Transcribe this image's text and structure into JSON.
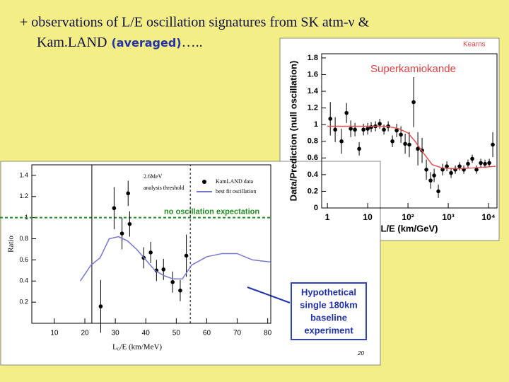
{
  "slide": {
    "title_line1": "+ observations of L/E oscillation signatures from SK atm-ν &",
    "title_line2": "Kam.LAND",
    "title_line2_note": "(averaged)",
    "title_line2_end": "…..",
    "callout": [
      "Hypothetical",
      "single 180km",
      "baseline",
      "experiment"
    ],
    "page_number": "20"
  },
  "chart_data": [
    {
      "type": "scatter",
      "title": "Superkamiokande",
      "credit": "Kearns",
      "xlabel": "L/E (km/GeV)",
      "ylabel": "Data/Prediction (null oscillation)",
      "log_x": true,
      "xlim": [
        0.72,
        16200
      ],
      "xticks": [
        1,
        10,
        {
          "value": 100,
          "label": "10²"
        },
        {
          "value": 1000,
          "label": "10³"
        },
        {
          "value": 10000,
          "label": "10⁴"
        }
      ],
      "ylim": [
        0,
        1.85
      ],
      "yticks": [
        0,
        0.2,
        0.4,
        0.6,
        0.8,
        1,
        1.2,
        1.4,
        1.6,
        1.8
      ],
      "series": [
        {
          "kind": "markers",
          "color": "#000000",
          "x": [
            1.18,
            1.56,
            2.24,
            2.98,
            3.79,
            4.83,
            6.15,
            7.85,
            10,
            12.2,
            15.6,
            19.9,
            25.3,
            32.3,
            41.1,
            52.4,
            66.8,
            85.1,
            108,
            138,
            176,
            224,
            286,
            364,
            446,
            568,
            724,
            922,
            1175,
            1497,
            1907,
            2430,
            3092,
            3944,
            5024,
            6412,
            8166,
            10420,
            12740
          ],
          "values": [
            1.07,
            0.94,
            0.8,
            1.14,
            0.95,
            0.94,
            0.71,
            0.94,
            0.95,
            0.97,
            0.98,
            1.01,
            0.94,
            0.98,
            0.8,
            0.93,
            0.88,
            0.77,
            0.76,
            1.27,
            0.71,
            0.69,
            0.46,
            0.33,
            0.39,
            0.2,
            0.46,
            0.5,
            0.42,
            0.46,
            0.5,
            0.46,
            0.53,
            0.59,
            0.46,
            0.54,
            0.53,
            0.54,
            0.76
          ],
          "errors": [
            0.2,
            0.15,
            0.15,
            0.12,
            0.1,
            0.08,
            0.08,
            0.07,
            0.07,
            0.06,
            0.06,
            0.06,
            0.06,
            0.06,
            0.07,
            0.08,
            0.1,
            0.12,
            0.15,
            0.3,
            0.2,
            0.15,
            0.12,
            0.1,
            0.08,
            0.08,
            0.07,
            0.06,
            0.06,
            0.05,
            0.05,
            0.05,
            0.05,
            0.05,
            0.05,
            0.05,
            0.05,
            0.05,
            0.15
          ]
        },
        {
          "kind": "line",
          "color": "#e05050",
          "x": [
            1,
            10,
            30,
            60,
            100,
            150,
            250,
            400,
            700,
            1500,
            4000,
            15000
          ],
          "values": [
            0.98,
            0.98,
            0.98,
            0.95,
            0.9,
            0.8,
            0.65,
            0.52,
            0.48,
            0.47,
            0.48,
            0.5
          ]
        }
      ]
    },
    {
      "type": "scatter",
      "xlabel": "L₀/E (km/MeV)",
      "ylabel": "Ratio",
      "log_x": false,
      "xlim": [
        2.6,
        81
      ],
      "xticks": [
        10,
        20,
        30,
        40,
        50,
        60,
        70,
        80
      ],
      "ylim": [
        0,
        1.5
      ],
      "yticks": [
        0.2,
        0.4,
        0.6,
        0.8,
        1,
        1.2,
        1.4
      ],
      "hline": 1,
      "hline_label": "no oscillation expectation",
      "hline_color": "#228b22",
      "vlines": [
        22.3,
        54.6
      ],
      "threshold_label": [
        "2.6MeV",
        "analysis threshold"
      ],
      "series": [
        {
          "name": "KamLAND data",
          "kind": "markers",
          "color": "#000000",
          "x": [
            25.2,
            29.6,
            32.2,
            34.2,
            34.7,
            39.3,
            41.6,
            43.5,
            45.8,
            48.8,
            51.3,
            53.3
          ],
          "values": [
            0.16,
            1.09,
            0.85,
            1.23,
            0.94,
            0.62,
            0.67,
            0.5,
            0.51,
            0.39,
            0.31,
            0.64
          ],
          "errors": [
            0.25,
            0.2,
            0.15,
            0.12,
            0.12,
            0.1,
            0.1,
            0.1,
            0.1,
            0.1,
            0.1,
            0.2
          ]
        },
        {
          "name": "best fit oscillation",
          "kind": "line",
          "color": "#7777cc",
          "x": [
            18.5,
            22,
            25,
            28,
            31,
            34,
            37,
            40,
            43,
            46,
            49,
            52,
            55,
            60,
            65,
            70,
            75,
            81
          ],
          "values": [
            0.4,
            0.55,
            0.62,
            0.8,
            0.82,
            0.78,
            0.7,
            0.6,
            0.5,
            0.45,
            0.42,
            0.42,
            0.55,
            0.63,
            0.66,
            0.66,
            0.6,
            0.58
          ]
        }
      ]
    }
  ]
}
